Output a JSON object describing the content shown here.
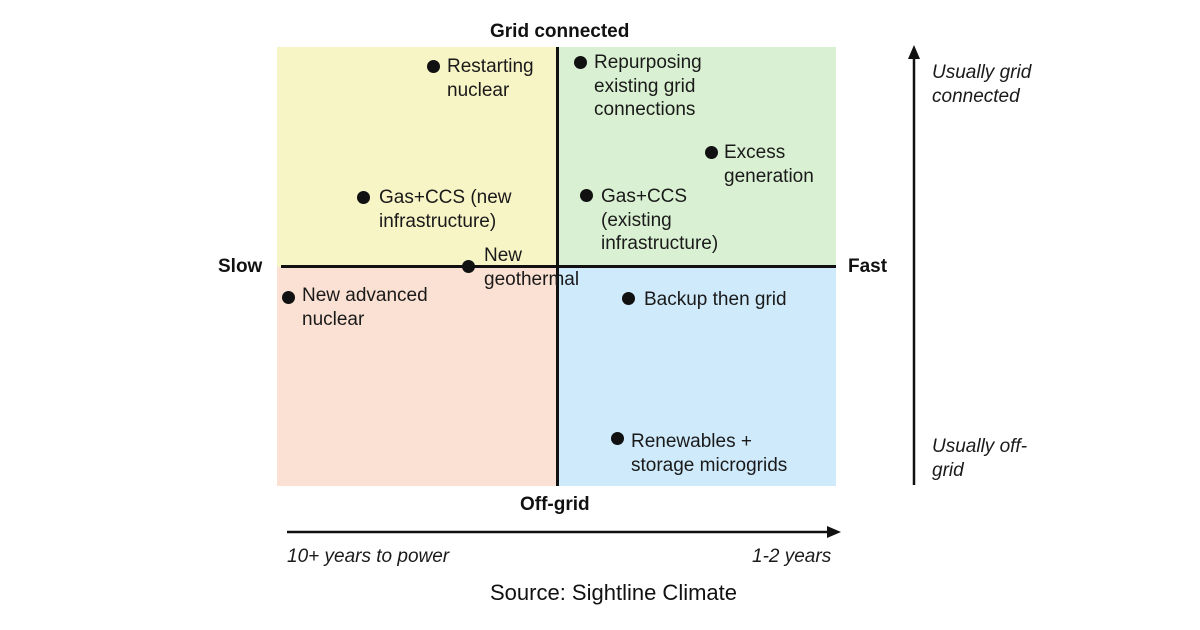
{
  "quadrants": {
    "top_left_color": "#f7f4c5",
    "top_right_color": "#d9f1d2",
    "bottom_left_color": "#fbe1d3",
    "bottom_right_color": "#cfeafb"
  },
  "axes": {
    "top": "Grid connected",
    "bottom": "Off-grid",
    "left": "Slow",
    "right": "Fast",
    "x_start": "10+ years to power",
    "x_end": "1-2 years",
    "y_top": [
      "Usually grid",
      "connected"
    ],
    "y_bottom": [
      "Usually off-",
      "grid"
    ]
  },
  "points": [
    {
      "id": "restarting-nuclear",
      "lines": [
        "Restarting",
        "nuclear"
      ]
    },
    {
      "id": "repurposing-grid",
      "lines": [
        "Repurposing",
        "existing grid",
        "connections"
      ]
    },
    {
      "id": "excess-generation",
      "lines": [
        "Excess",
        "generation"
      ]
    },
    {
      "id": "gas-ccs-new",
      "lines": [
        "Gas+CCS (new",
        "infrastructure)"
      ]
    },
    {
      "id": "gas-ccs-existing",
      "lines": [
        "Gas+CCS",
        "(existing",
        "infrastructure)"
      ]
    },
    {
      "id": "new-geothermal",
      "lines": [
        "New",
        "geothermal"
      ]
    },
    {
      "id": "new-advanced-nuclear",
      "lines": [
        "New advanced",
        "nuclear"
      ]
    },
    {
      "id": "backup-then-grid",
      "lines": [
        "Backup then grid"
      ]
    },
    {
      "id": "renewables-storage",
      "lines": [
        "Renewables +",
        "storage microgrids"
      ]
    }
  ],
  "source": "Source: Sightline Climate"
}
